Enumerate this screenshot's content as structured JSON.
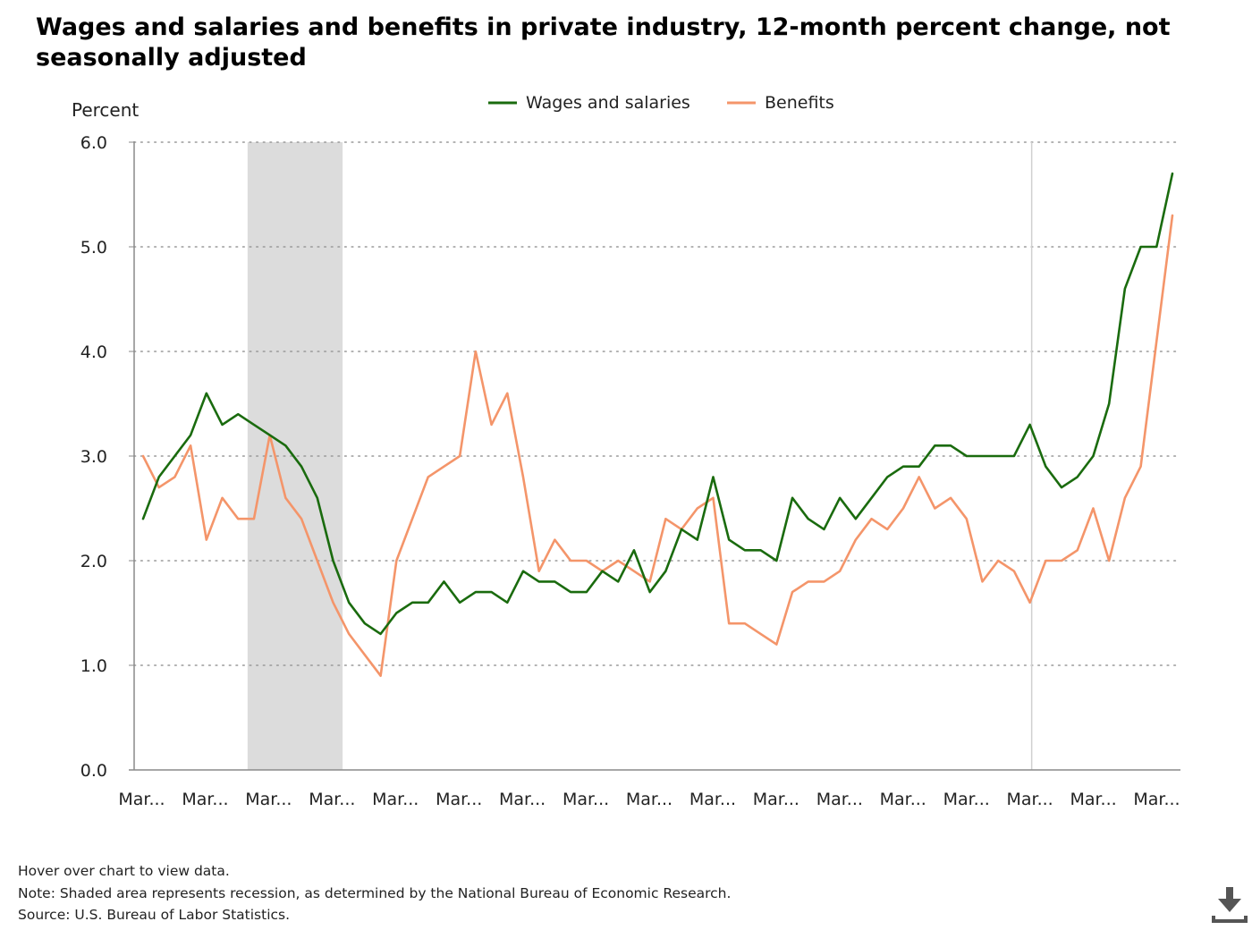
{
  "title": "Wages and salaries and benefits in private industry, 12-month percent change, not seasonally adjusted",
  "footer": {
    "hover_hint": "Hover over chart to view data.",
    "note": "Note: Shaded area represents recession, as determined by the National Bureau of Economic Research.",
    "source": "Source: U.S. Bureau of Labor Statistics."
  },
  "download_icon": "download-icon",
  "chart_data": {
    "type": "line",
    "ylabel": "Percent",
    "ylim": [
      0,
      6
    ],
    "yticks": [
      0,
      1,
      2,
      3,
      4,
      5,
      6
    ],
    "ytick_labels": [
      "0.0",
      "1.0",
      "2.0",
      "3.0",
      "4.0",
      "5.0",
      "6.0"
    ],
    "grid": "horizontal-dotted",
    "legend": "top-center",
    "x_tick_labels": [
      "Mar...",
      "Mar...",
      "Mar...",
      "Mar...",
      "Mar...",
      "Mar...",
      "Mar...",
      "Mar...",
      "Mar...",
      "Mar...",
      "Mar...",
      "Mar...",
      "Mar...",
      "Mar...",
      "Mar...",
      "Mar...",
      "Mar..."
    ],
    "recession_shading": {
      "from_index": 7,
      "to_index": 13,
      "color": "#dcdcdc"
    },
    "reference_line_index": 56,
    "series": [
      {
        "name": "Wages and salaries",
        "color": "#1a6b0e",
        "values": [
          2.4,
          2.8,
          3.0,
          3.2,
          3.6,
          3.3,
          3.4,
          3.3,
          3.2,
          3.1,
          2.9,
          2.6,
          2.0,
          1.6,
          1.4,
          1.3,
          1.5,
          1.6,
          1.6,
          1.8,
          1.6,
          1.7,
          1.7,
          1.6,
          1.9,
          1.8,
          1.8,
          1.7,
          1.7,
          1.9,
          1.8,
          2.1,
          1.7,
          1.9,
          2.3,
          2.2,
          2.8,
          2.2,
          2.1,
          2.1,
          2.0,
          2.6,
          2.4,
          2.3,
          2.6,
          2.4,
          2.6,
          2.8,
          2.9,
          2.9,
          3.1,
          3.1,
          3.0,
          3.0,
          3.0,
          3.0,
          3.3,
          2.9,
          2.7,
          2.8,
          3.0,
          3.5,
          4.6,
          5.0,
          5.0,
          5.7
        ]
      },
      {
        "name": "Benefits",
        "color": "#f4956a",
        "values": [
          3.0,
          2.7,
          2.8,
          3.1,
          2.2,
          2.6,
          2.4,
          2.4,
          3.2,
          2.6,
          2.4,
          2.0,
          1.6,
          1.3,
          1.1,
          0.9,
          2.0,
          2.4,
          2.8,
          2.9,
          3.0,
          4.0,
          3.3,
          3.6,
          2.8,
          1.9,
          2.2,
          2.0,
          2.0,
          1.9,
          2.0,
          1.9,
          1.8,
          2.4,
          2.3,
          2.5,
          2.6,
          1.4,
          1.4,
          1.3,
          1.2,
          1.7,
          1.8,
          1.8,
          1.9,
          2.2,
          2.4,
          2.3,
          2.5,
          2.8,
          2.5,
          2.6,
          2.4,
          1.8,
          2.0,
          1.9,
          1.6,
          2.0,
          2.0,
          2.1,
          2.5,
          2.0,
          2.6,
          2.9,
          4.1,
          5.3
        ]
      }
    ]
  }
}
